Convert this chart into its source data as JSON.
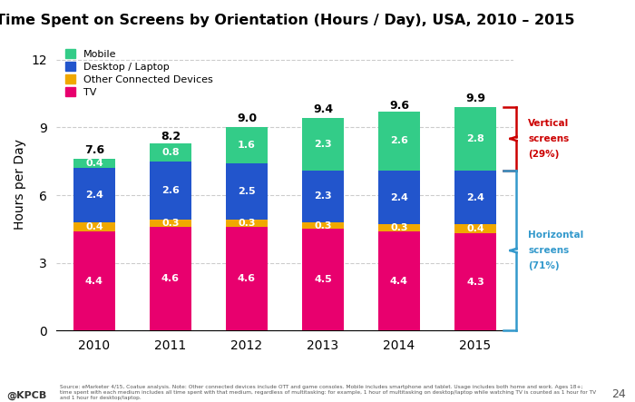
{
  "title": "Time Spent on Screens by Orientation (Hours / Day), USA, 2010 – 2015",
  "years": [
    "2010",
    "2011",
    "2012",
    "2013",
    "2014",
    "2015"
  ],
  "tv": [
    4.4,
    4.6,
    4.6,
    4.5,
    4.4,
    4.3
  ],
  "other": [
    0.4,
    0.3,
    0.3,
    0.3,
    0.3,
    0.4
  ],
  "desktop": [
    2.4,
    2.6,
    2.5,
    2.3,
    2.4,
    2.4
  ],
  "mobile": [
    0.4,
    0.8,
    1.6,
    2.3,
    2.6,
    2.8
  ],
  "totals": [
    7.6,
    8.2,
    9.0,
    9.4,
    9.6,
    9.9
  ],
  "color_tv": "#e8006e",
  "color_other": "#f0a800",
  "color_desktop": "#2255cc",
  "color_mobile": "#33cc88",
  "ylabel": "Hours per Day",
  "ylim": [
    0,
    13
  ],
  "yticks": [
    0,
    3,
    6,
    9,
    12
  ],
  "legend_labels": [
    "Mobile",
    "Desktop / Laptop",
    "Other Connected Devices",
    "TV"
  ],
  "bg_color": "#ffffff",
  "grid_color": "#aaaaaa",
  "bar_width": 0.55,
  "footer": "@KPCB",
  "source_text": "Source: eMarketer 4/15, Coatue analysis. Note: Other connected devices include OTT and game consoles. Mobile includes smartphone and tablet. Usage includes both home and work. Ages 18+;\ntime spent with each medium includes all time spent with that medium, regardless of multitasking: for example, 1 hour of multitasking on desktop/laptop while watching TV is counted as 1 hour for TV\nand 1 hour for desktop/laptop.",
  "page_num": "24",
  "vert_label": [
    "Vertical",
    "screens",
    "(29%)"
  ],
  "horiz_label": [
    "Horizontal",
    "screens",
    "(71%)"
  ],
  "color_vert": "#cc0000",
  "color_horiz": "#3399cc"
}
